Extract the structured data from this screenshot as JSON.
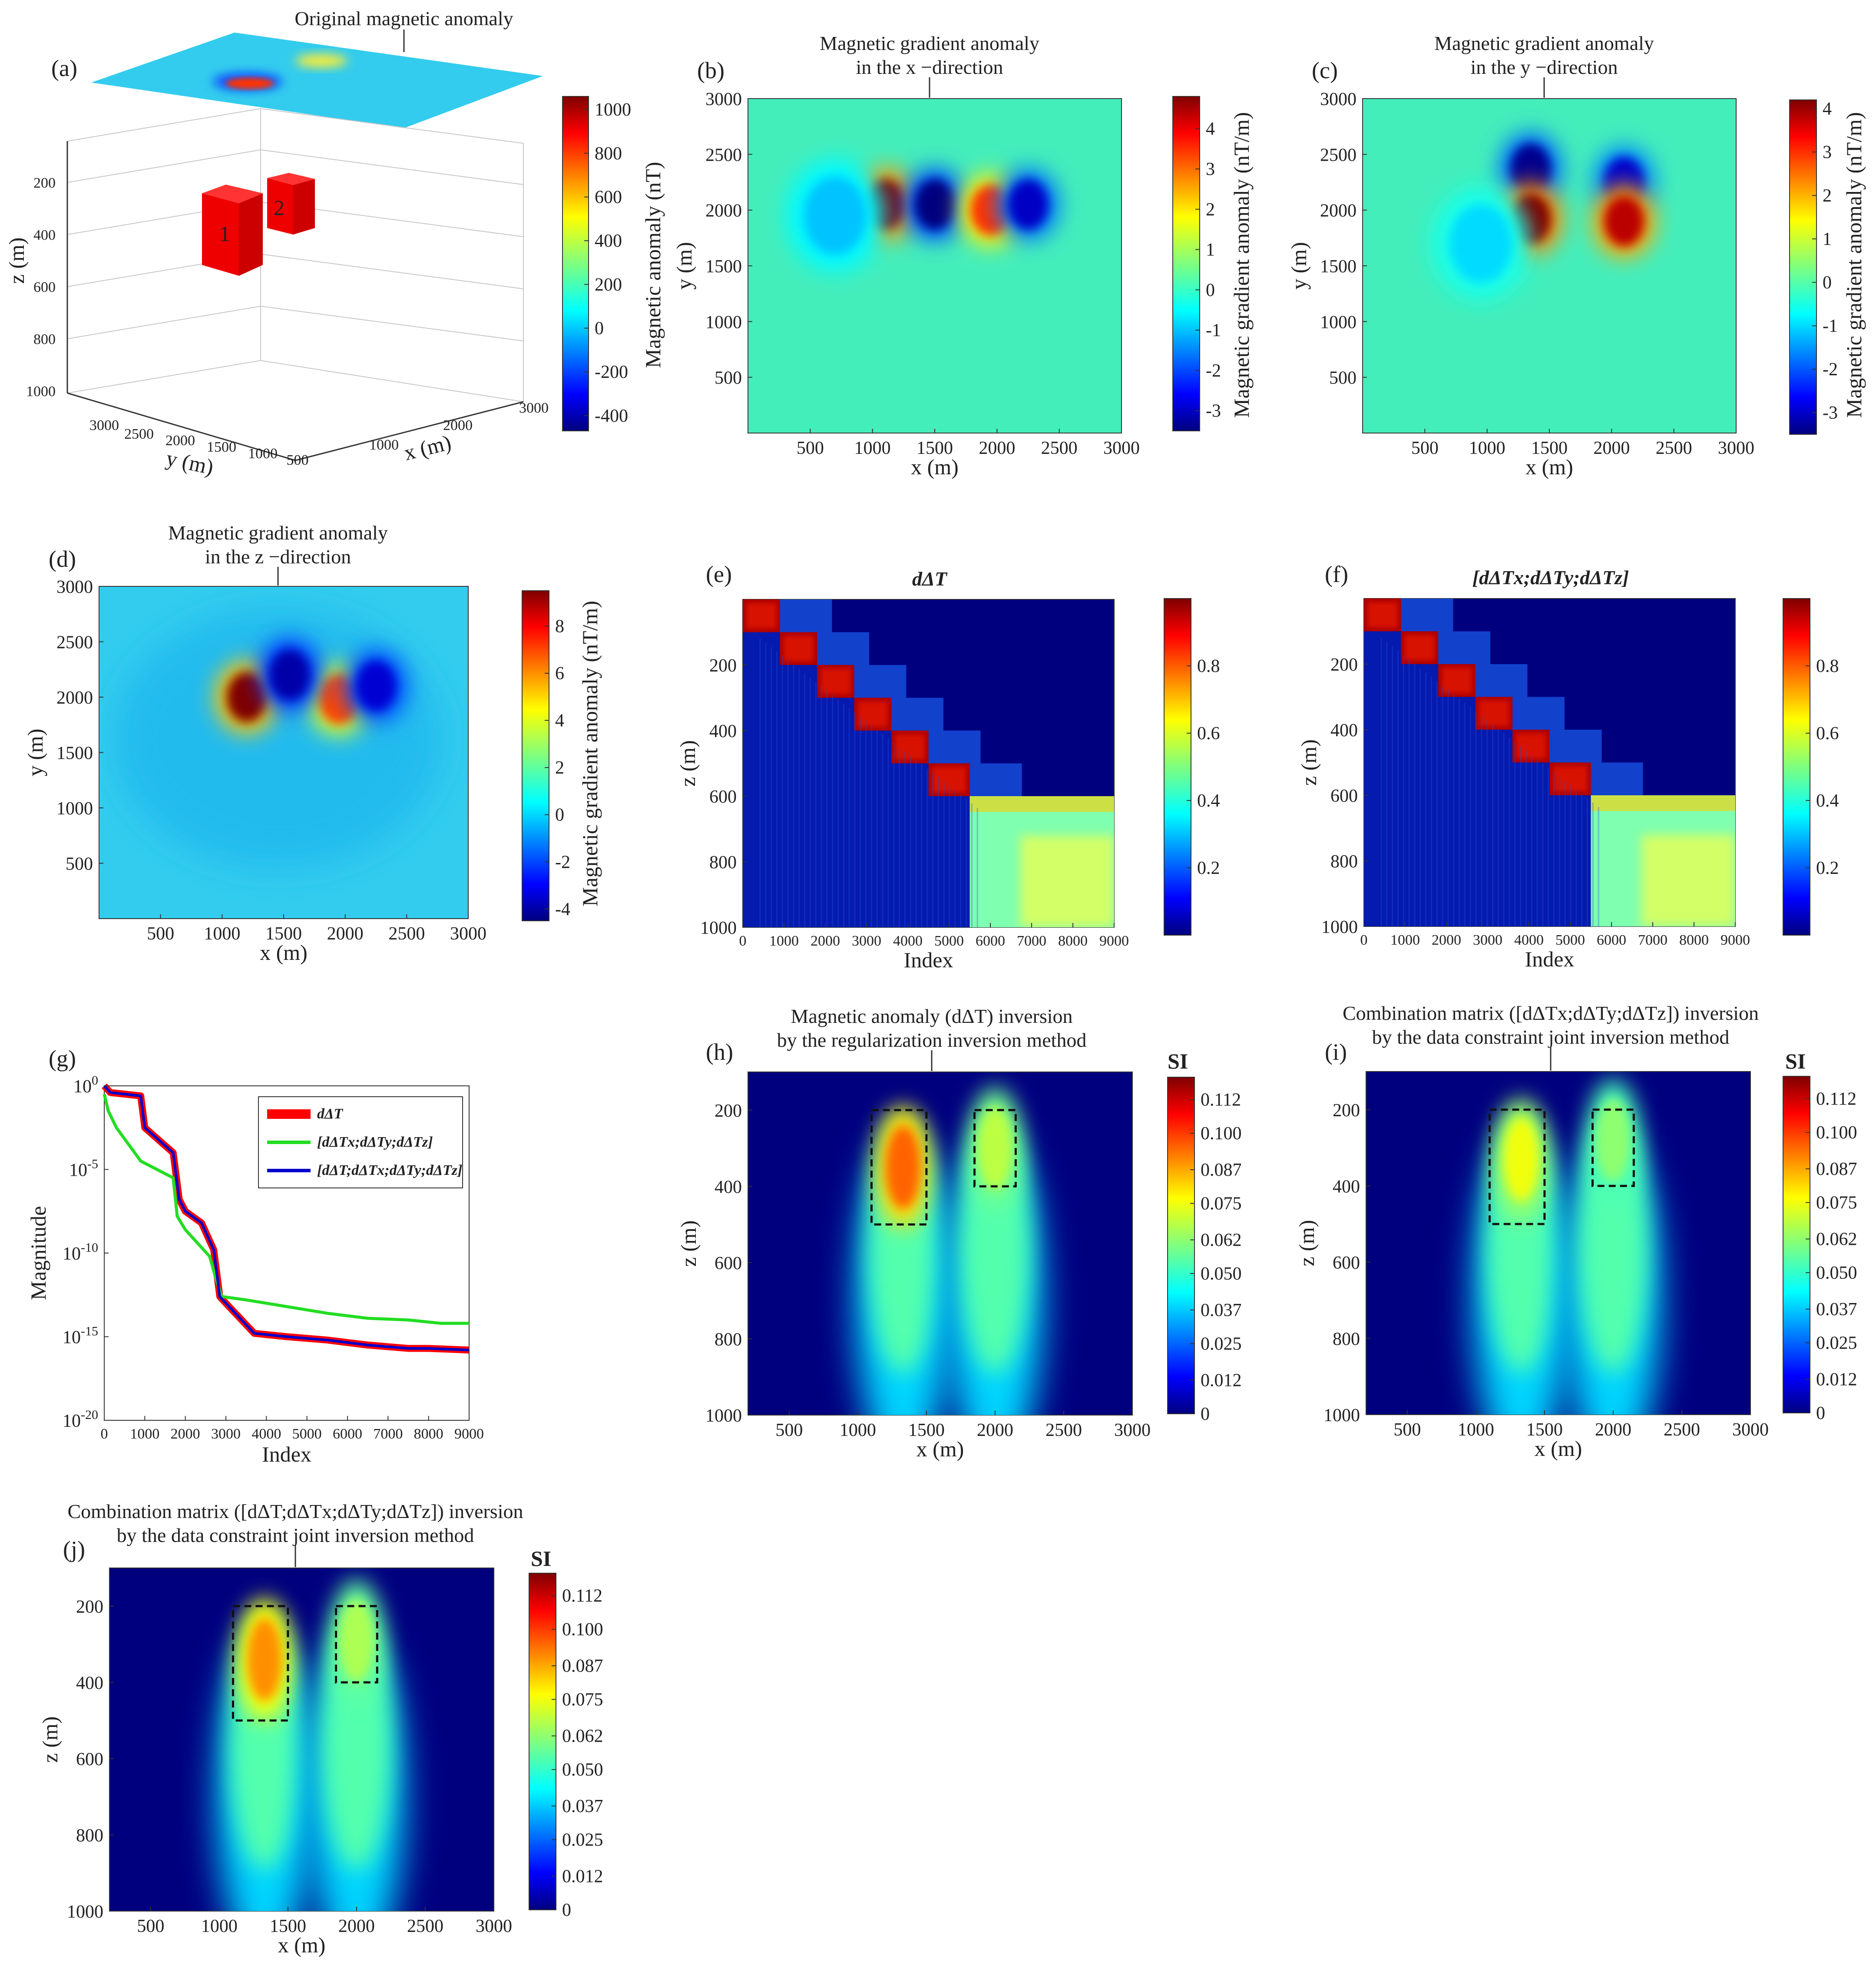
{
  "colors": {
    "jet": [
      "#00007f",
      "#0000ff",
      "#007fff",
      "#00ffff",
      "#7fff7f",
      "#ffff00",
      "#ff7f00",
      "#ff0000",
      "#7f0000"
    ],
    "background": "#ffffff",
    "line_red": "#ff0000",
    "line_green": "#22dd22",
    "line_blue": "#0000cc"
  },
  "panels": {
    "a": {
      "label": "(a)",
      "title": "Original magnetic anomaly",
      "zlabel": "z (m)",
      "xlabel": "x (m)",
      "ylabel": "y (m)",
      "zticks": [
        "200",
        "400",
        "600",
        "800",
        "1000"
      ],
      "xticks": [
        "500",
        "1000",
        "1500",
        "2000",
        "2500",
        "3000"
      ],
      "yticks": [
        "500",
        "1000",
        "1500",
        "2000",
        "2500",
        "3000"
      ],
      "blocks": [
        "1",
        "2"
      ],
      "cbar_label": "Magnetic anomaly (nT)",
      "cbar_ticks": [
        "1000",
        "800",
        "600",
        "400",
        "200",
        "0",
        "-200",
        "-400"
      ]
    },
    "b": {
      "label": "(b)",
      "title_line1": "Magnetic gradient anomaly",
      "title_line2": "in the x −direction",
      "xlabel": "x (m)",
      "ylabel": "y (m)",
      "xticks": [
        "500",
        "1000",
        "1500",
        "2000",
        "2500",
        "3000"
      ],
      "yticks": [
        "3000",
        "2500",
        "2000",
        "1500",
        "1000",
        "500"
      ],
      "cbar_label": "Magnetic gradient anomaly (nT/m)",
      "cbar_ticks": [
        "4",
        "3",
        "2",
        "1",
        "0",
        "-1",
        "-2",
        "-3"
      ]
    },
    "c": {
      "label": "(c)",
      "title_line1": "Magnetic gradient anomaly",
      "title_line2": "in the y −direction",
      "xlabel": "x (m)",
      "ylabel": "y (m)",
      "xticks": [
        "500",
        "1000",
        "1500",
        "2000",
        "2500",
        "3000"
      ],
      "yticks": [
        "3000",
        "2500",
        "2000",
        "1500",
        "1000",
        "500"
      ],
      "cbar_label": "Magnetic gradient anomaly (nT/m)",
      "cbar_ticks": [
        "4",
        "3",
        "2",
        "1",
        "0",
        "-1",
        "-2",
        "-3"
      ]
    },
    "d": {
      "label": "(d)",
      "title_line1": "Magnetic gradient anomaly",
      "title_line2": "in the z −direction",
      "xlabel": "x (m)",
      "ylabel": "y (m)",
      "xticks": [
        "500",
        "1000",
        "1500",
        "2000",
        "2500",
        "3000"
      ],
      "yticks": [
        "3000",
        "2500",
        "2000",
        "1500",
        "1000",
        "500"
      ],
      "cbar_label": "Magnetic gradient anomaly (nT/m)",
      "cbar_ticks": [
        "8",
        "6",
        "4",
        "2",
        "0",
        "-2",
        "-4"
      ]
    },
    "e": {
      "label": "(e)",
      "title": "dΔT",
      "xlabel": "Index",
      "ylabel": "z (m)",
      "xticks": [
        "0",
        "1000",
        "2000",
        "3000",
        "4000",
        "5000",
        "6000",
        "7000",
        "8000",
        "9000"
      ],
      "yticks": [
        "200",
        "400",
        "600",
        "800",
        "1000"
      ],
      "cbar_ticks": [
        "0.8",
        "0.6",
        "0.4",
        "0.2"
      ]
    },
    "f": {
      "label": "(f)",
      "title": "[dΔTx;dΔTy;dΔTz]",
      "xlabel": "Index",
      "ylabel": "z (m)",
      "xticks": [
        "0",
        "1000",
        "2000",
        "3000",
        "4000",
        "5000",
        "6000",
        "7000",
        "8000",
        "9000"
      ],
      "yticks": [
        "200",
        "400",
        "600",
        "800",
        "1000"
      ],
      "cbar_ticks": [
        "0.8",
        "0.6",
        "0.4",
        "0.2"
      ]
    },
    "g": {
      "label": "(g)",
      "xlabel": "Index",
      "ylabel": "Magnitude",
      "xticks": [
        "0",
        "1000",
        "2000",
        "3000",
        "4000",
        "5000",
        "6000",
        "7000",
        "8000",
        "9000"
      ],
      "yticks": [
        "10^0",
        "10^-5",
        "10^-10",
        "10^-15",
        "10^-20"
      ],
      "legend": [
        "dΔT",
        "[dΔTx;dΔTy;dΔTz]",
        "[dΔT;dΔTx;dΔTy;dΔTz]"
      ]
    },
    "h": {
      "label": "(h)",
      "title_line1": "Magnetic anomaly (dΔT) inversion",
      "title_line2": "by the regularization inversion method",
      "xlabel": "x (m)",
      "ylabel": "z (m)",
      "xticks": [
        "500",
        "1000",
        "1500",
        "2000",
        "2500",
        "3000"
      ],
      "yticks": [
        "200",
        "400",
        "600",
        "800",
        "1000"
      ],
      "cbar_title": "SI",
      "cbar_ticks": [
        "0.112",
        "0.100",
        "0.087",
        "0.075",
        "0.062",
        "0.050",
        "0.037",
        "0.025",
        "0.012",
        "0"
      ]
    },
    "i": {
      "label": "(i)",
      "title_line1": "Combination matrix ([dΔTx;dΔTy;dΔTz]) inversion",
      "title_line2": "by the data constraint joint inversion method",
      "xlabel": "x (m)",
      "ylabel": "z (m)",
      "xticks": [
        "500",
        "1000",
        "1500",
        "2000",
        "2500",
        "3000"
      ],
      "yticks": [
        "200",
        "400",
        "600",
        "800",
        "1000"
      ],
      "cbar_title": "SI",
      "cbar_ticks": [
        "0.112",
        "0.100",
        "0.087",
        "0.075",
        "0.062",
        "0.050",
        "0.037",
        "0.025",
        "0.012",
        "0"
      ]
    },
    "j": {
      "label": "(j)",
      "title_line1": "Combination matrix ([dΔT;dΔTx;dΔTy;dΔTz]) inversion",
      "title_line2": "by the data constraint joint inversion method",
      "xlabel": "x (m)",
      "ylabel": "z (m)",
      "xticks": [
        "500",
        "1000",
        "1500",
        "2000",
        "2500",
        "3000"
      ],
      "yticks": [
        "200",
        "400",
        "600",
        "800",
        "1000"
      ],
      "cbar_title": "SI",
      "cbar_ticks": [
        "0.112",
        "0.100",
        "0.087",
        "0.075",
        "0.062",
        "0.050",
        "0.037",
        "0.025",
        "0.012",
        "0"
      ]
    }
  },
  "chart_data": [
    {
      "id": "a",
      "type": "heatmap",
      "title": "Original magnetic anomaly",
      "xlabel": "x (m)",
      "ylabel": "y (m)",
      "zlabel": "z (m)",
      "xlim": [
        0,
        3000
      ],
      "ylim": [
        0,
        3000
      ],
      "zlim": [
        0,
        1000
      ],
      "clim": [
        -400,
        1000
      ],
      "anomalies": [
        {
          "x": 1350,
          "y": 2000,
          "amplitude": 1000
        },
        {
          "x": 2000,
          "y": 2100,
          "amplitude": 450
        }
      ],
      "blocks": [
        {
          "name": "1",
          "x": [
            1150,
            1550
          ],
          "y": [
            1800,
            2200
          ],
          "z": [
            200,
            500
          ]
        },
        {
          "name": "2",
          "x": [
            1850,
            2150
          ],
          "y": [
            1900,
            2200
          ],
          "z": [
            200,
            400
          ]
        }
      ]
    },
    {
      "id": "b",
      "type": "heatmap",
      "title": "Magnetic gradient anomaly in the x −direction",
      "xlabel": "x (m)",
      "ylabel": "y (m)",
      "xlim": [
        0,
        3000
      ],
      "ylim": [
        0,
        3000
      ],
      "clim": [
        -3.5,
        4.8
      ],
      "anomalies": [
        {
          "x": 1100,
          "y": 2050,
          "value": 4.8
        },
        {
          "x": 1500,
          "y": 2050,
          "value": -3.5
        },
        {
          "x": 1950,
          "y": 2000,
          "value": 3.5
        },
        {
          "x": 2250,
          "y": 2050,
          "value": -3.0
        },
        {
          "x": 700,
          "y": 1950,
          "value": -1.0
        }
      ]
    },
    {
      "id": "c",
      "type": "heatmap",
      "title": "Magnetic gradient anomaly in the y −direction",
      "xlabel": "x (m)",
      "ylabel": "y (m)",
      "xlim": [
        0,
        3000
      ],
      "ylim": [
        0,
        3000
      ],
      "clim": [
        -3.5,
        4.2
      ],
      "anomalies": [
        {
          "x": 1350,
          "y": 2370,
          "value": -3.4
        },
        {
          "x": 1350,
          "y": 1920,
          "value": 4.2
        },
        {
          "x": 2100,
          "y": 2250,
          "value": -3.0
        },
        {
          "x": 2100,
          "y": 1900,
          "value": 3.8
        },
        {
          "x": 950,
          "y": 1700,
          "value": -1.0
        }
      ]
    },
    {
      "id": "d",
      "type": "heatmap",
      "title": "Magnetic gradient anomaly in the z −direction",
      "xlabel": "x (m)",
      "ylabel": "y (m)",
      "xlim": [
        0,
        3000
      ],
      "ylim": [
        0,
        3000
      ],
      "clim": [
        -4.5,
        9.5
      ],
      "anomalies": [
        {
          "x": 1200,
          "y": 2000,
          "value": 9.5
        },
        {
          "x": 1950,
          "y": 1980,
          "value": 7.0
        },
        {
          "x": 1550,
          "y": 2200,
          "value": -4.0
        },
        {
          "x": 2250,
          "y": 2100,
          "value": -3.5
        }
      ]
    },
    {
      "id": "e",
      "type": "heatmap",
      "title": "dΔT",
      "xlabel": "Index",
      "ylabel": "z (m)",
      "xlim": [
        0,
        9000
      ],
      "ylim": [
        0,
        1000
      ],
      "clim": [
        0,
        1
      ],
      "bands": [
        {
          "x": [
            0,
            900
          ],
          "z": [
            0,
            100
          ],
          "value": 1.0
        },
        {
          "x": 900,
          "x1": 1800,
          "z": [
            100,
            200
          ],
          "value": 1.0
        },
        {
          "x": [
            1800,
            2700
          ],
          "z": [
            200,
            300
          ],
          "value": 1.0
        },
        {
          "x": [
            2700,
            3600
          ],
          "z": [
            300,
            400
          ],
          "value": 1.0
        },
        {
          "x": [
            3600,
            4500
          ],
          "z": [
            400,
            500
          ],
          "value": 1.0
        },
        {
          "x": [
            4500,
            5500
          ],
          "z": [
            500,
            600
          ],
          "value": 1.0
        },
        {
          "x": [
            5500,
            9000
          ],
          "z": [
            600,
            1000
          ],
          "value": 0.6
        }
      ]
    },
    {
      "id": "f",
      "type": "heatmap",
      "title": "[dΔTx;dΔTy;dΔTz]",
      "xlabel": "Index",
      "ylabel": "z (m)",
      "xlim": [
        0,
        9000
      ],
      "ylim": [
        0,
        1000
      ],
      "clim": [
        0,
        1
      ],
      "bands": [
        {
          "x": [
            0,
            900
          ],
          "z": [
            0,
            100
          ],
          "value": 1.0
        },
        {
          "x": [
            900,
            1800
          ],
          "z": [
            100,
            200
          ],
          "value": 1.0
        },
        {
          "x": [
            1800,
            2700
          ],
          "z": [
            200,
            300
          ],
          "value": 1.0
        },
        {
          "x": [
            2700,
            3600
          ],
          "z": [
            300,
            400
          ],
          "value": 1.0
        },
        {
          "x": [
            3600,
            4500
          ],
          "z": [
            400,
            500
          ],
          "value": 1.0
        },
        {
          "x": [
            4500,
            5500
          ],
          "z": [
            500,
            600
          ],
          "value": 1.0
        },
        {
          "x": [
            5500,
            9000
          ],
          "z": [
            600,
            1000
          ],
          "value": 0.6
        }
      ]
    },
    {
      "id": "g",
      "type": "line",
      "xlabel": "Index",
      "ylabel": "Magnitude",
      "xlim": [
        0,
        9000
      ],
      "ylim_log10": [
        -20,
        0
      ],
      "yscale": "log",
      "series": [
        {
          "name": "dΔT",
          "color": "#ff0000",
          "x": [
            0,
            150,
            900,
            1000,
            1700,
            1850,
            2000,
            2400,
            2700,
            2850,
            3000,
            3700,
            4500,
            5500,
            6500,
            7500,
            8000,
            9000
          ],
          "log10y": [
            0,
            -0.4,
            -0.6,
            -2.5,
            -4.0,
            -6.8,
            -7.5,
            -8.2,
            -9.8,
            -12.6,
            -13.0,
            -14.8,
            -15.0,
            -15.2,
            -15.5,
            -15.7,
            -15.7,
            -15.8
          ]
        },
        {
          "name": "[dΔTx;dΔTy;dΔTz]",
          "color": "#22dd22",
          "x": [
            0,
            100,
            300,
            900,
            1700,
            1800,
            2000,
            2600,
            2750,
            2900,
            3500,
            4500,
            5500,
            6500,
            7500,
            8300,
            9000
          ],
          "log10y": [
            -0.5,
            -1.5,
            -2.5,
            -4.5,
            -5.5,
            -7.8,
            -8.6,
            -10.2,
            -11.5,
            -12.6,
            -12.8,
            -13.2,
            -13.6,
            -13.9,
            -14.0,
            -14.2,
            -14.2
          ]
        },
        {
          "name": "[dΔT;dΔTx;dΔTy;dΔTz]",
          "color": "#0000cc",
          "x": [
            0,
            150,
            900,
            1000,
            1700,
            1850,
            2000,
            2400,
            2700,
            2850,
            3000,
            3700,
            4500,
            5500,
            6500,
            7500,
            8000,
            9000
          ],
          "log10y": [
            0,
            -0.4,
            -0.6,
            -2.5,
            -4.0,
            -6.8,
            -7.5,
            -8.2,
            -9.8,
            -12.6,
            -13.0,
            -14.8,
            -15.0,
            -15.2,
            -15.5,
            -15.7,
            -15.7,
            -15.8
          ]
        }
      ]
    },
    {
      "id": "h",
      "type": "heatmap",
      "title": "Magnetic anomaly (dΔT) inversion by the regularization inversion method",
      "xlabel": "x (m)",
      "ylabel": "z (m)",
      "xlim": [
        200,
        3000
      ],
      "ylim": [
        100,
        1000
      ],
      "clim": [
        0,
        0.12
      ],
      "bodies": [
        {
          "x": 1330,
          "z": 350,
          "peak": 0.095
        },
        {
          "x": 2000,
          "z": 300,
          "peak": 0.068
        }
      ],
      "true_blocks": [
        {
          "x": [
            1100,
            1500
          ],
          "z": [
            200,
            500
          ]
        },
        {
          "x": 1850,
          "x1": 2150,
          "z": [
            200,
            400
          ]
        }
      ]
    },
    {
      "id": "i",
      "type": "heatmap",
      "title": "Combination matrix ([dΔTx;dΔTy;dΔTz]) inversion by the data constraint joint inversion method",
      "xlabel": "x (m)",
      "ylabel": "z (m)",
      "xlim": [
        200,
        3000
      ],
      "ylim": [
        100,
        1000
      ],
      "clim": [
        0,
        0.12
      ],
      "bodies": [
        {
          "x": 1330,
          "z": 330,
          "peak": 0.075
        },
        {
          "x": 2000,
          "z": 280,
          "peak": 0.062
        }
      ],
      "true_blocks": [
        {
          "x": [
            1100,
            1500
          ],
          "z": [
            200,
            500
          ]
        },
        {
          "x": [
            1850,
            2150
          ],
          "z": [
            200,
            400
          ]
        }
      ]
    },
    {
      "id": "j",
      "type": "heatmap",
      "title": "Combination matrix ([dΔT;dΔTx;dΔTy;dΔTz]) inversion by the data constraint joint inversion method",
      "xlabel": "x (m)",
      "ylabel": "z (m)",
      "xlim": [
        200,
        3000
      ],
      "ylim": [
        100,
        1000
      ],
      "clim": [
        0,
        0.12
      ],
      "bodies": [
        {
          "x": 1330,
          "z": 340,
          "peak": 0.09
        },
        {
          "x": 2000,
          "z": 290,
          "peak": 0.066
        }
      ],
      "true_blocks": [
        {
          "x": [
            1100,
            1500
          ],
          "z": [
            200,
            500
          ]
        },
        {
          "x": [
            1850,
            2150
          ],
          "z": [
            200,
            400
          ]
        }
      ]
    }
  ]
}
